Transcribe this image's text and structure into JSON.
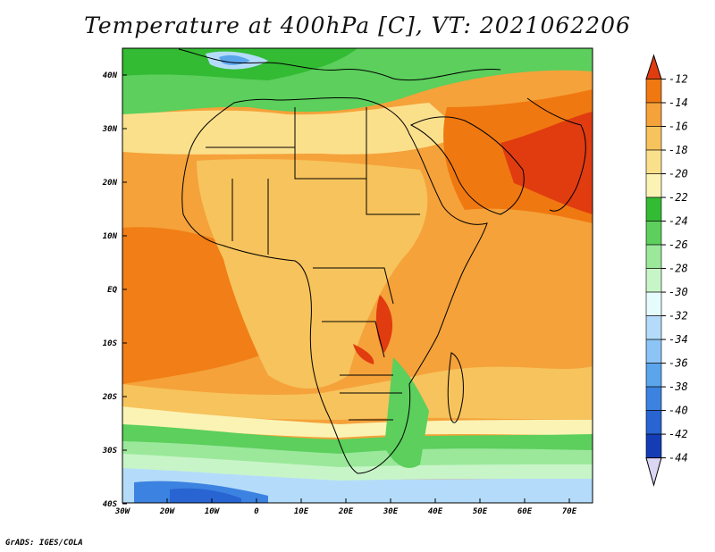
{
  "title": "Temperature at 400hPa [C], VT: 2021062206",
  "credit": "GrADS: IGES/COLA",
  "lon_labels": [
    "30W",
    "20W",
    "10W",
    "0",
    "10E",
    "20E",
    "30E",
    "40E",
    "50E",
    "60E",
    "70E"
  ],
  "lat_labels": [
    "40N",
    "30N",
    "20N",
    "10N",
    "EQ",
    "10S",
    "20S",
    "30S",
    "40S"
  ],
  "colorbar": {
    "labels": [
      "-12",
      "-14",
      "-16",
      "-18",
      "-20",
      "-22",
      "-24",
      "-26",
      "-28",
      "-30",
      "-32",
      "-34",
      "-36",
      "-38",
      "-40",
      "-42",
      "-44"
    ],
    "colors": [
      "#e03c10",
      "#f07810",
      "#f5a23a",
      "#f7c35c",
      "#fbe08c",
      "#fbf3b4",
      "#33bb33",
      "#5ccf5c",
      "#9be89b",
      "#c8f5c8",
      "#e6fcfc",
      "#b4dcfa",
      "#8cc4f5",
      "#5aa5ec",
      "#3c82e0",
      "#2864d2",
      "#143cb4",
      "#001a78"
    ]
  },
  "legend_colors": {
    "ocean_warm": "#f5a23a",
    "land_warm": "#f7c35c",
    "india_hot": "#e03c10",
    "southern_green": "#5ccf5c",
    "southern_cold": "#8cc4f5",
    "antarctic_front": "#3c82e0"
  }
}
